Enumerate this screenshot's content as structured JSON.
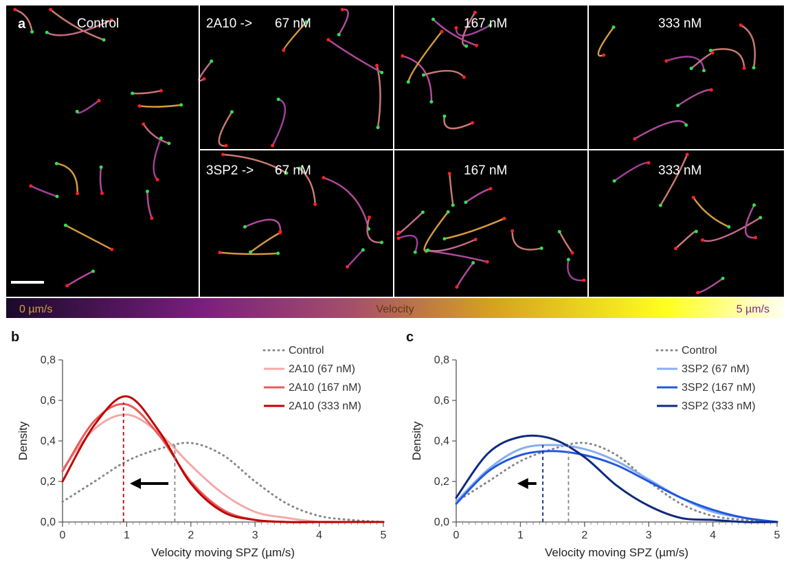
{
  "panel_a": {
    "label": "a",
    "tiles": {
      "control": "Control",
      "top_prefix": "2A10 ->",
      "top_67": "67 nM",
      "top_167": "167 nM",
      "top_333": "333 nM",
      "bottom_prefix": "3SP2 ->",
      "bottom_67": "67 nM",
      "bottom_167": "167 nM",
      "bottom_333": "333 nM"
    },
    "colorbar": {
      "min_label": "0 µm/s",
      "title": "Velocity",
      "max_label": "5 µm/s",
      "colors": [
        "#1a0a2a",
        "#7a1e7e",
        "#a8506a",
        "#d4a020",
        "#ffff20",
        "#fffff0"
      ]
    }
  },
  "chart_data": [
    {
      "type": "line",
      "panel": "b",
      "xlabel": "Velocity moving SPZ (µm/s)",
      "ylabel": "Density",
      "xlim": [
        0,
        5
      ],
      "ylim": [
        0,
        0.8
      ],
      "x_ticks": [
        "0",
        "1",
        "2",
        "3",
        "4",
        "5"
      ],
      "y_ticks": [
        "0,0",
        "0,2",
        "0,4",
        "0,6",
        "0,8"
      ],
      "legend": "top-right",
      "series": [
        {
          "name": "Control",
          "color": "#888888",
          "dash": "dotted",
          "x": [
            0,
            0.5,
            1,
            1.5,
            2,
            2.5,
            3,
            3.5,
            4,
            4.5,
            5
          ],
          "y": [
            0.1,
            0.2,
            0.3,
            0.36,
            0.39,
            0.33,
            0.2,
            0.09,
            0.03,
            0.01,
            0.0
          ]
        },
        {
          "name": "2A10 (67 nM)",
          "color": "#f4a8a8",
          "x": [
            0,
            0.5,
            1,
            1.5,
            2,
            2.5,
            3,
            3.5,
            4,
            4.5,
            5
          ],
          "y": [
            0.26,
            0.46,
            0.53,
            0.44,
            0.28,
            0.14,
            0.05,
            0.02,
            0.0,
            0.0,
            0.0
          ]
        },
        {
          "name": "2A10 (167 nM)",
          "color": "#e85a5a",
          "x": [
            0,
            0.5,
            1,
            1.5,
            2,
            2.5,
            3,
            3.5,
            4,
            4.5,
            5
          ],
          "y": [
            0.25,
            0.5,
            0.58,
            0.43,
            0.2,
            0.06,
            0.01,
            0.0,
            0.0,
            0.0,
            0.0
          ]
        },
        {
          "name": "2A10 (333 nM)",
          "color": "#c00000",
          "x": [
            0,
            0.5,
            1,
            1.5,
            2,
            2.5,
            3,
            3.5,
            4,
            4.5,
            5
          ],
          "y": [
            0.2,
            0.48,
            0.62,
            0.45,
            0.19,
            0.05,
            0.01,
            0.0,
            0.0,
            0.0,
            0.0
          ]
        }
      ],
      "vlines": [
        {
          "x": 1.75,
          "y": 0.38,
          "color": "#888888"
        },
        {
          "x": 0.95,
          "y": 0.59,
          "color": "#c00000"
        }
      ],
      "arrow": {
        "from": 1.65,
        "to": 1.05,
        "y": 0.19
      }
    },
    {
      "type": "line",
      "panel": "c",
      "xlabel": "Velocity moving SPZ (µm/s)",
      "ylabel": "Density",
      "xlim": [
        0,
        5
      ],
      "ylim": [
        0,
        0.8
      ],
      "x_ticks": [
        "0",
        "1",
        "2",
        "3",
        "4",
        "5"
      ],
      "y_ticks": [
        "0,0",
        "0,2",
        "0,4",
        "0,6",
        "0,8"
      ],
      "legend": "top-right",
      "series": [
        {
          "name": "Control",
          "color": "#888888",
          "dash": "dotted",
          "x": [
            0,
            0.5,
            1,
            1.5,
            2,
            2.5,
            3,
            3.5,
            4,
            4.5,
            5
          ],
          "y": [
            0.1,
            0.2,
            0.3,
            0.36,
            0.39,
            0.33,
            0.2,
            0.09,
            0.03,
            0.01,
            0.0
          ]
        },
        {
          "name": "3SP2 (67 nM)",
          "color": "#86aef0",
          "x": [
            0,
            0.5,
            1,
            1.5,
            2,
            2.5,
            3,
            3.5,
            4,
            4.5,
            5
          ],
          "y": [
            0.1,
            0.26,
            0.36,
            0.38,
            0.36,
            0.3,
            0.21,
            0.12,
            0.05,
            0.02,
            0.0
          ]
        },
        {
          "name": "3SP2 (167 nM)",
          "color": "#2157e0",
          "x": [
            0,
            0.5,
            1,
            1.5,
            2,
            2.5,
            3,
            3.5,
            4,
            4.5,
            5
          ],
          "y": [
            0.09,
            0.25,
            0.33,
            0.35,
            0.33,
            0.28,
            0.2,
            0.12,
            0.06,
            0.02,
            0.0
          ]
        },
        {
          "name": "3SP2 (333 nM)",
          "color": "#0d2a80",
          "x": [
            0,
            0.5,
            1,
            1.5,
            2,
            2.5,
            3,
            3.5,
            4,
            4.5,
            5
          ],
          "y": [
            0.12,
            0.34,
            0.42,
            0.41,
            0.32,
            0.18,
            0.08,
            0.02,
            0.01,
            0.0,
            0.0
          ]
        }
      ],
      "vlines": [
        {
          "x": 1.75,
          "y": 0.38,
          "color": "#888888"
        },
        {
          "x": 1.35,
          "y": 0.38,
          "color": "#0d2a80"
        }
      ],
      "arrow": {
        "from": 1.25,
        "to": 0.95,
        "y": 0.19
      }
    }
  ]
}
